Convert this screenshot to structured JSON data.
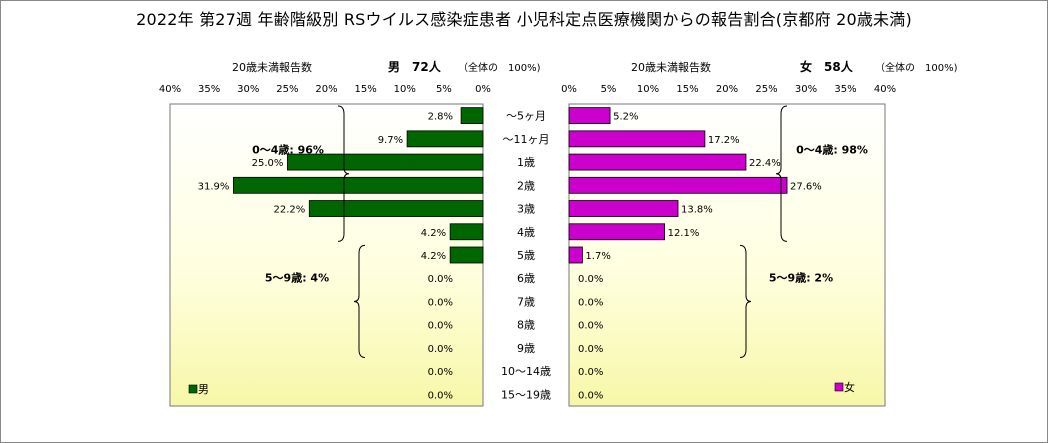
{
  "title": "2022年 第27週 年齢階級別 RSウイルス感染症患者 小児科定点医療機関からの報告割合(京都府 20歳未満)",
  "chart_data": {
    "type": "bar",
    "orientation": "horizontal-butterfly",
    "categories": [
      "～5ヶ月",
      "～11ヶ月",
      "1歳",
      "2歳",
      "3歳",
      "4歳",
      "5歳",
      "6歳",
      "7歳",
      "8歳",
      "9歳",
      "10～14歳",
      "15～19歳"
    ],
    "xlim": [
      0,
      40
    ],
    "xticks": [
      "40%",
      "35%",
      "30%",
      "25%",
      "20%",
      "15%",
      "10%",
      "5%",
      "0%"
    ],
    "xticks_right": [
      "0%",
      "5%",
      "10%",
      "15%",
      "20%",
      "25%",
      "30%",
      "35%",
      "40%"
    ],
    "series": [
      {
        "name": "男",
        "side": "left",
        "color": "#006600",
        "axis_label": "20歳未満報告数",
        "header_bold": "男　72人",
        "header_note": "（全体の　100%)",
        "values": [
          2.8,
          9.7,
          25.0,
          31.9,
          22.2,
          4.2,
          4.2,
          0.0,
          0.0,
          0.0,
          0.0,
          0.0,
          0.0
        ],
        "labels": [
          "2.8%",
          "9.7%",
          "25.0%",
          "31.9%",
          "22.2%",
          "4.2%",
          "4.2%",
          "0.0%",
          "0.0%",
          "0.0%",
          "0.0%",
          "0.0%",
          "0.0%"
        ],
        "groups": [
          {
            "label": "0～4歳: 96%",
            "from": 0,
            "to": 5
          },
          {
            "label": "5～9歳: 4%",
            "from": 6,
            "to": 10
          }
        ]
      },
      {
        "name": "女",
        "side": "right",
        "color": "#cc00cc",
        "axis_label": "20歳未満報告数",
        "header_bold": "女　58人",
        "header_note": "（全体の　100%)",
        "values": [
          5.2,
          17.2,
          22.4,
          27.6,
          13.8,
          12.1,
          1.7,
          0.0,
          0.0,
          0.0,
          0.0,
          0.0,
          0.0
        ],
        "labels": [
          "5.2%",
          "17.2%",
          "22.4%",
          "27.6%",
          "13.8%",
          "12.1%",
          "1.7%",
          "0.0%",
          "0.0%",
          "0.0%",
          "0.0%",
          "0.0%",
          "0.0%"
        ],
        "groups": [
          {
            "label": "0～4歳: 98%",
            "from": 0,
            "to": 5
          },
          {
            "label": "5～9歳: 2%",
            "from": 6,
            "to": 10
          }
        ]
      }
    ],
    "legend": [
      {
        "name": "男",
        "placement": "bottom-left"
      },
      {
        "name": "女",
        "placement": "bottom-right"
      }
    ],
    "plot_background": "gradient white-to-pale-yellow"
  }
}
